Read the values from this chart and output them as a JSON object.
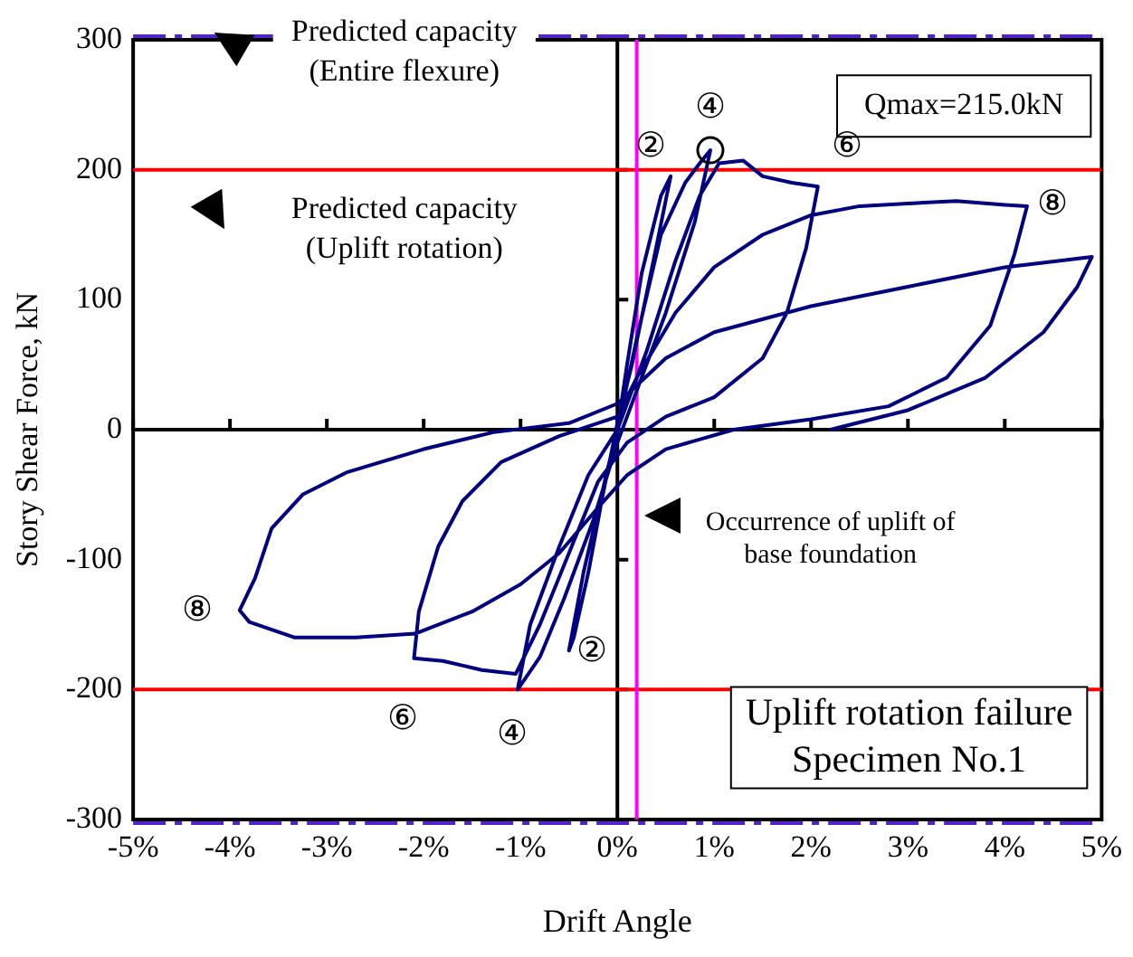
{
  "chart_data": {
    "type": "line",
    "xlabel": "Drift Angle",
    "ylabel": "Story Shear Force, kN",
    "xlim": [
      -5,
      5
    ],
    "ylim": [
      -300,
      300
    ],
    "xticks": [
      {
        "value": -5,
        "label": "-5%"
      },
      {
        "value": -4,
        "label": "-4%"
      },
      {
        "value": -3,
        "label": "-3%"
      },
      {
        "value": -2,
        "label": "-2%"
      },
      {
        "value": -1,
        "label": "-1%"
      },
      {
        "value": 0,
        "label": "0%"
      },
      {
        "value": 1,
        "label": "1%"
      },
      {
        "value": 2,
        "label": "2%"
      },
      {
        "value": 3,
        "label": "3%"
      },
      {
        "value": 4,
        "label": "4%"
      },
      {
        "value": 5,
        "label": "5%"
      }
    ],
    "yticks": [
      -300,
      -200,
      -100,
      0,
      100,
      200,
      300
    ],
    "legend": false,
    "color": "#000080",
    "x": [
      0,
      0.1,
      0.25,
      0.45,
      0.55,
      0.4,
      0.15,
      0,
      -0.15,
      -0.3,
      -0.45,
      -0.5,
      -0.35,
      -0.1,
      0,
      0.2,
      0.45,
      0.7,
      0.85,
      0.96,
      0.8,
      0.5,
      0.2,
      0,
      -0.25,
      -0.55,
      -0.8,
      -1.03,
      -0.9,
      -0.6,
      -0.3,
      0,
      0.3,
      0.6,
      0.85,
      1.05,
      1.3,
      1.5,
      1.8,
      2.07,
      1.95,
      1.75,
      1.5,
      1.0,
      0.5,
      0.1,
      -0.2,
      -0.5,
      -0.8,
      -1.05,
      -1.4,
      -1.8,
      -2.1,
      -2.05,
      -1.85,
      -1.6,
      -1.2,
      -0.6,
      0,
      0.2,
      0.6,
      1.0,
      1.5,
      2.0,
      2.5,
      3.0,
      3.5,
      4.0,
      4.23,
      4.1,
      3.85,
      3.4,
      2.8,
      2.0,
      1.2,
      0.5,
      0.1,
      -0.2,
      -0.6,
      -1.0,
      -1.5,
      -2.09,
      -2.7,
      -3.33,
      -3.8,
      -3.9,
      -3.74,
      -3.57,
      -3.25,
      -2.8,
      -2.0,
      -1.28,
      -0.5,
      0,
      0.5,
      1.0,
      2.0,
      3.0,
      4.0,
      4.9,
      4.75,
      4.4,
      3.8,
      3.0,
      2.2
    ],
    "values": [
      0,
      50,
      120,
      180,
      195,
      140,
      50,
      5,
      -50,
      -110,
      -160,
      -170,
      -110,
      -30,
      0,
      70,
      150,
      190,
      205,
      215,
      160,
      90,
      30,
      -10,
      -70,
      -130,
      -175,
      -200,
      -150,
      -90,
      -35,
      0,
      60,
      130,
      180,
      205,
      207,
      195,
      190,
      187,
      140,
      90,
      55,
      25,
      10,
      -10,
      -40,
      -95,
      -150,
      -188,
      -185,
      -178,
      -176,
      -140,
      -90,
      -55,
      -25,
      -5,
      10,
      40,
      90,
      125,
      150,
      165,
      172,
      174,
      176,
      173,
      172,
      135,
      80,
      40,
      18,
      8,
      0,
      -15,
      -35,
      -60,
      -95,
      -119,
      -140,
      -157,
      -160,
      -160,
      -148,
      -139,
      -114,
      -76,
      -50,
      -33,
      -15,
      -2,
      5,
      20,
      55,
      75,
      95,
      110,
      125,
      133,
      110,
      75,
      40,
      15,
      0
    ],
    "ref_lines": [
      {
        "axis": "y",
        "value": 300,
        "label": "Predicted capacity\n(Entire flexure)",
        "color": "#5522cc",
        "line_style": "dashed"
      },
      {
        "axis": "y",
        "value": -300,
        "label": null,
        "color": "#5522cc",
        "line_style": "dashed"
      },
      {
        "axis": "y",
        "value": 200,
        "label": "Predicted capacity\n(Uplift rotation)",
        "color": "#ff0000",
        "line_style": "solid"
      },
      {
        "axis": "y",
        "value": -200,
        "label": null,
        "color": "#ff0000",
        "line_style": "solid"
      },
      {
        "axis": "x",
        "value": 0.2,
        "label": "Occurrence of uplift of\nbase foundation",
        "color": "#ff00ff",
        "line_style": "solid"
      }
    ],
    "annotations": [
      "Qmax=215.0kN",
      "②",
      "④",
      "⑥",
      "⑧",
      "⑧",
      "⑥",
      "④",
      "②",
      "Uplift rotation failure\nSpecimen No.1"
    ]
  }
}
